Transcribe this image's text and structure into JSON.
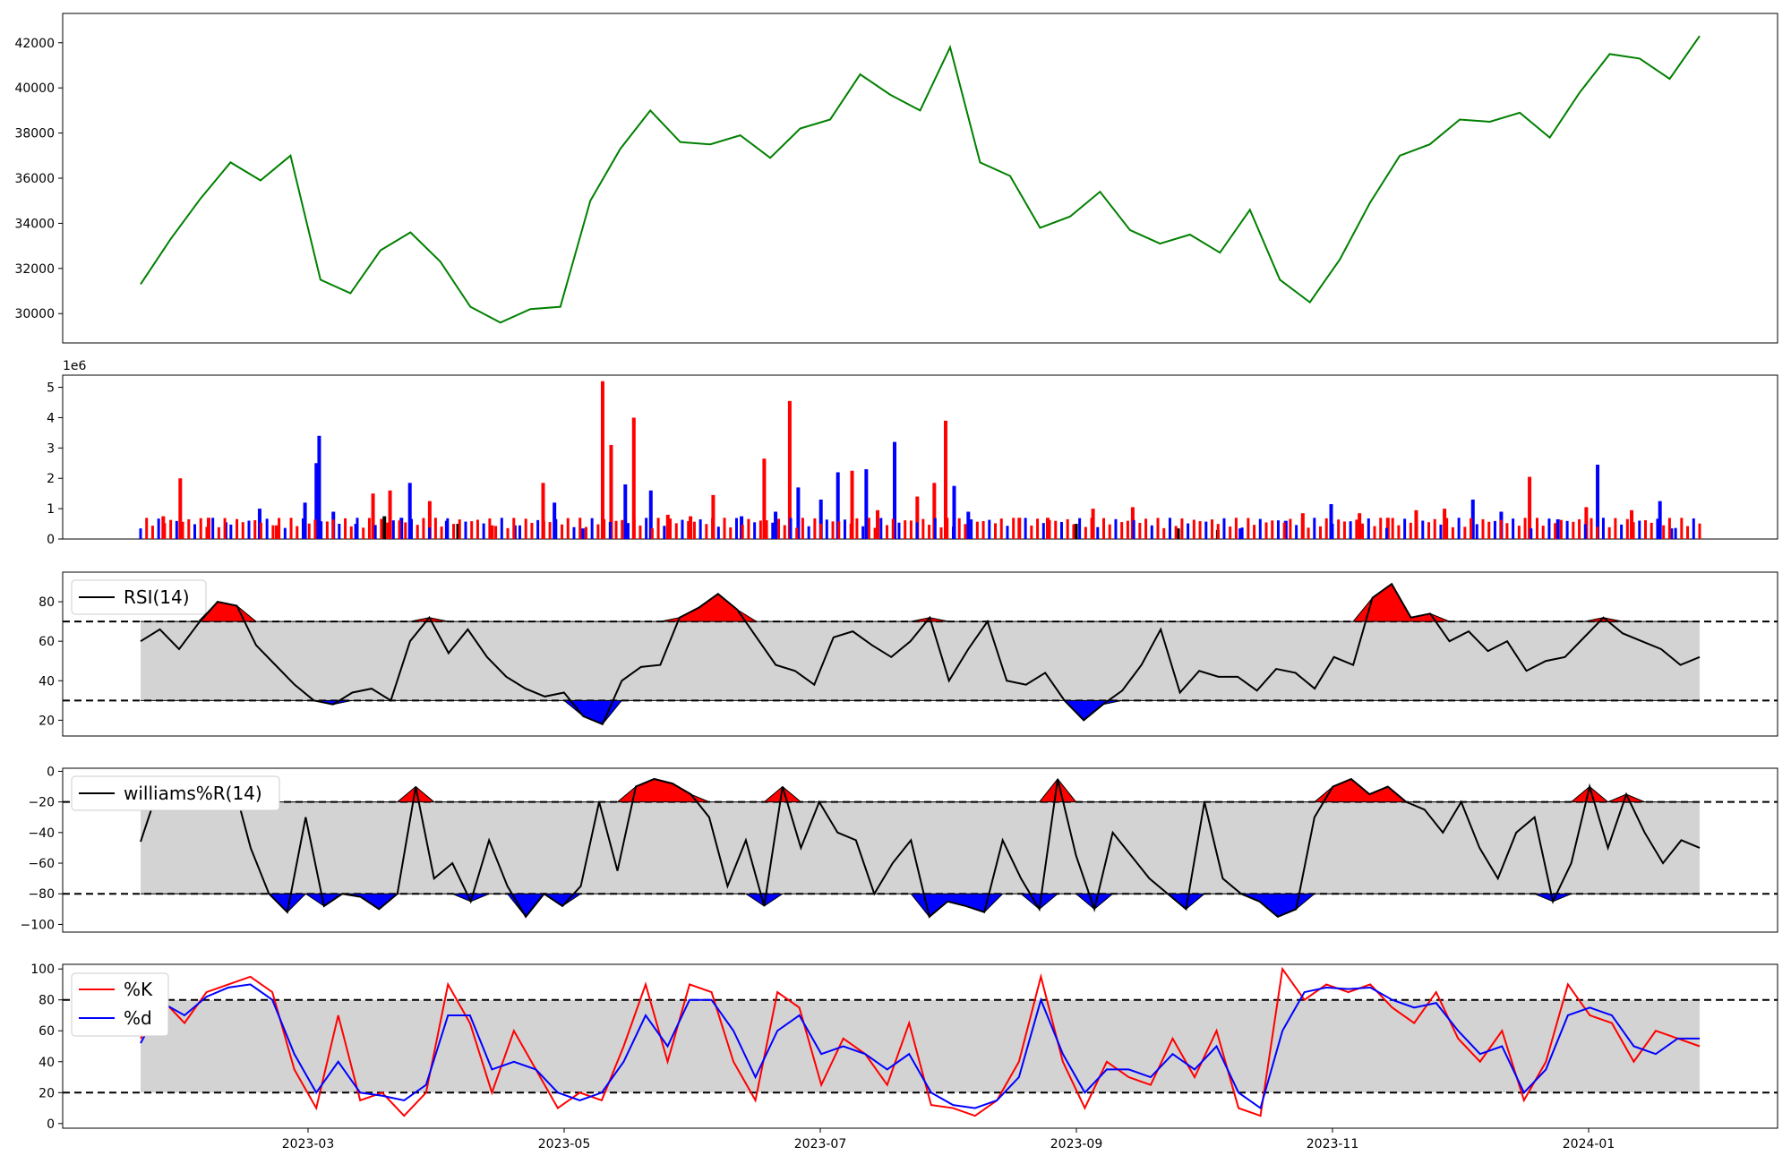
{
  "colors": {
    "price": "#008000",
    "up": "#ff0000",
    "down": "#0000ff",
    "flat": "#000000",
    "band": "#d3d3d3",
    "line": "#000000",
    "k": "#ff0000",
    "d": "#0000ff"
  },
  "chart_data": [
    {
      "type": "line",
      "name": "price",
      "ylim": [
        28700,
        43300
      ],
      "yticks": [
        "30000",
        "32000",
        "34000",
        "36000",
        "38000",
        "40000",
        "42000"
      ],
      "x_dates": [
        "2023-01-24",
        "2023-02-01",
        "2023-02-08",
        "2023-02-15",
        "2023-02-22",
        "2023-03-01",
        "2023-03-08",
        "2023-03-15",
        "2023-03-22",
        "2023-03-29",
        "2023-04-05",
        "2023-04-12",
        "2023-04-19",
        "2023-04-26",
        "2023-05-03",
        "2023-05-10",
        "2023-05-17",
        "2023-05-24",
        "2023-05-31",
        "2023-06-07",
        "2023-06-14",
        "2023-06-21",
        "2023-06-28",
        "2023-07-05",
        "2023-07-12",
        "2023-07-19",
        "2023-07-26",
        "2023-08-02",
        "2023-08-09",
        "2023-08-16",
        "2023-08-23",
        "2023-08-30",
        "2023-09-06",
        "2023-09-13",
        "2023-09-20",
        "2023-09-27",
        "2023-10-04",
        "2023-10-11",
        "2023-10-18",
        "2023-10-25",
        "2023-11-01",
        "2023-11-08",
        "2023-11-15",
        "2023-11-22",
        "2023-11-29",
        "2023-12-06",
        "2023-12-13",
        "2023-12-20",
        "2023-12-27",
        "2024-01-03",
        "2024-01-10",
        "2024-01-17",
        "2024-01-24"
      ],
      "y": [
        31300,
        33300,
        35100,
        36700,
        35900,
        37000,
        31500,
        30900,
        32800,
        33600,
        32300,
        30300,
        29600,
        30200,
        30300,
        35000,
        37300,
        39000,
        37600,
        37500,
        37900,
        36900,
        38200,
        38600,
        40600,
        39700,
        39000,
        41800,
        36700,
        36100,
        33800,
        34300,
        35400,
        33700,
        33100,
        33500,
        32700,
        34600,
        31500,
        30500,
        32400,
        34900,
        37000,
        37500,
        38600,
        38500,
        38900,
        37800,
        39800,
        41500,
        41300,
        40400,
        42300
      ]
    },
    {
      "type": "bar",
      "name": "volume",
      "ylim": [
        0,
        5.4
      ],
      "yticks": [
        "0",
        "1",
        "2",
        "3",
        "4",
        "5"
      ],
      "scale_label": "1e6",
      "points": [
        [
          0.4,
          0.75,
          "r"
        ],
        [
          0.7,
          2.0,
          "r"
        ],
        [
          1.2,
          0.7,
          "r"
        ],
        [
          1.5,
          0.55,
          "b"
        ],
        [
          2.1,
          1.0,
          "b"
        ],
        [
          2.4,
          0.45,
          "r"
        ],
        [
          2.9,
          1.2,
          "b"
        ],
        [
          3.1,
          2.5,
          "b"
        ],
        [
          3.15,
          3.4,
          "b"
        ],
        [
          3.4,
          0.9,
          "b"
        ],
        [
          3.8,
          0.5,
          "b"
        ],
        [
          4.1,
          1.5,
          "r"
        ],
        [
          4.3,
          0.75,
          "k"
        ],
        [
          4.4,
          1.6,
          "r"
        ],
        [
          4.6,
          0.7,
          "b"
        ],
        [
          4.75,
          1.85,
          "b"
        ],
        [
          5.1,
          1.25,
          "r"
        ],
        [
          5.4,
          0.6,
          "b"
        ],
        [
          5.6,
          0.5,
          "k"
        ],
        [
          6.2,
          0.45,
          "r"
        ],
        [
          6.6,
          0.45,
          "b"
        ],
        [
          7.1,
          1.85,
          "r"
        ],
        [
          7.3,
          1.2,
          "b"
        ],
        [
          7.8,
          0.35,
          "b"
        ],
        [
          8.15,
          5.2,
          "r"
        ],
        [
          8.3,
          3.1,
          "r"
        ],
        [
          8.55,
          1.8,
          "b"
        ],
        [
          8.7,
          4.0,
          "r"
        ],
        [
          9.0,
          1.6,
          "b"
        ],
        [
          9.3,
          0.8,
          "r"
        ],
        [
          9.7,
          0.75,
          "r"
        ],
        [
          10.1,
          1.45,
          "r"
        ],
        [
          10.6,
          0.75,
          "b"
        ],
        [
          11.0,
          2.65,
          "r"
        ],
        [
          11.2,
          0.9,
          "b"
        ],
        [
          11.45,
          4.55,
          "r"
        ],
        [
          11.6,
          1.7,
          "b"
        ],
        [
          12.0,
          1.3,
          "b"
        ],
        [
          12.3,
          2.2,
          "b"
        ],
        [
          12.55,
          2.25,
          "r"
        ],
        [
          12.8,
          2.3,
          "b"
        ],
        [
          13.0,
          0.95,
          "r"
        ],
        [
          13.3,
          3.2,
          "b"
        ],
        [
          13.7,
          1.4,
          "r"
        ],
        [
          14.0,
          1.85,
          "r"
        ],
        [
          14.2,
          3.9,
          "r"
        ],
        [
          14.35,
          1.75,
          "b"
        ],
        [
          14.6,
          0.9,
          "b"
        ],
        [
          15.5,
          0.7,
          "r"
        ],
        [
          16.0,
          0.7,
          "r"
        ],
        [
          16.5,
          0.5,
          "k"
        ],
        [
          16.8,
          1.0,
          "r"
        ],
        [
          17.5,
          1.05,
          "r"
        ],
        [
          18.3,
          0.35,
          "k"
        ],
        [
          19.0,
          0.3,
          "k"
        ],
        [
          19.4,
          0.35,
          "b"
        ],
        [
          20.2,
          0.6,
          "b"
        ],
        [
          20.5,
          0.85,
          "r"
        ],
        [
          21.0,
          1.15,
          "b"
        ],
        [
          21.5,
          0.85,
          "r"
        ],
        [
          22.0,
          0.7,
          "r"
        ],
        [
          22.5,
          0.95,
          "r"
        ],
        [
          23.0,
          1.0,
          "r"
        ],
        [
          23.5,
          1.3,
          "b"
        ],
        [
          24.0,
          0.9,
          "b"
        ],
        [
          24.5,
          2.05,
          "r"
        ],
        [
          25.0,
          0.65,
          "b"
        ],
        [
          25.5,
          1.05,
          "r"
        ],
        [
          25.7,
          2.45,
          "b"
        ],
        [
          26.3,
          0.95,
          "r"
        ],
        [
          26.8,
          1.25,
          "b"
        ],
        [
          27.0,
          0.35,
          "b"
        ]
      ],
      "x_extra_dates": [
        "2023-01-24",
        "2024-01-24"
      ]
    },
    {
      "type": "line",
      "name": "rsi",
      "ylim": [
        12,
        95
      ],
      "yticks": [
        "20",
        "40",
        "60",
        "80"
      ],
      "upper": 70,
      "lower": 30,
      "legend": "RSI(14)",
      "y": [
        60,
        66,
        56,
        69,
        80,
        78,
        58,
        48,
        38,
        30,
        28,
        34,
        36,
        30,
        60,
        72,
        54,
        66,
        52,
        42,
        36,
        32,
        34,
        22,
        18,
        40,
        47,
        48,
        72,
        77,
        84,
        76,
        62,
        48,
        45,
        38,
        62,
        65,
        58,
        52,
        60,
        72,
        40,
        56,
        70,
        40,
        38,
        44,
        30,
        20,
        28,
        35,
        48,
        66,
        34,
        45,
        42,
        42,
        35,
        46,
        44,
        36,
        52,
        48,
        82,
        89,
        72,
        74,
        60,
        65,
        55,
        60,
        45,
        50,
        52,
        62,
        72,
        64,
        60,
        56,
        48,
        52
      ]
    },
    {
      "type": "line",
      "name": "williams",
      "ylim": [
        -105,
        2
      ],
      "yticks": [
        "0",
        "−20",
        "−40",
        "−60",
        "−80",
        "−100"
      ],
      "upper": -20,
      "lower": -80,
      "legend": "williams%R(14)",
      "y": [
        -46,
        -10,
        -15,
        -5,
        -15,
        -5,
        -50,
        -80,
        -92,
        -30,
        -88,
        -80,
        -82,
        -90,
        -80,
        -10,
        -70,
        -60,
        -85,
        -45,
        -75,
        -95,
        -80,
        -88,
        -75,
        -20,
        -65,
        -10,
        -5,
        -8,
        -15,
        -30,
        -75,
        -45,
        -88,
        -10,
        -50,
        -20,
        -40,
        -45,
        -80,
        -60,
        -45,
        -95,
        -85,
        -88,
        -92,
        -45,
        -70,
        -90,
        -5,
        -55,
        -90,
        -40,
        -55,
        -70,
        -80,
        -90,
        -20,
        -70,
        -80,
        -85,
        -95,
        -90,
        -30,
        -10,
        -5,
        -15,
        -10,
        -20,
        -25,
        -40,
        -20,
        -50,
        -70,
        -40,
        -30,
        -85,
        -60,
        -10,
        -50,
        -15,
        -40,
        -60,
        -45,
        -50
      ]
    },
    {
      "type": "line",
      "name": "stochastic",
      "ylim": [
        -3,
        103
      ],
      "yticks": [
        "0",
        "20",
        "40",
        "60",
        "80",
        "100"
      ],
      "upper": 80,
      "lower": 20,
      "legend_k": "%K",
      "legend_d": "%d",
      "k": [
        55,
        80,
        65,
        85,
        90,
        95,
        85,
        35,
        10,
        70,
        15,
        20,
        5,
        20,
        90,
        65,
        20,
        60,
        35,
        10,
        20,
        15,
        50,
        90,
        40,
        90,
        85,
        40,
        15,
        85,
        75,
        25,
        55,
        45,
        25,
        65,
        12,
        10,
        5,
        15,
        40,
        95,
        40,
        10,
        40,
        30,
        25,
        55,
        30,
        60,
        10,
        5,
        100,
        80,
        90,
        85,
        90,
        75,
        65,
        85,
        55,
        40,
        60,
        15,
        40,
        90,
        70,
        65,
        40,
        60,
        55,
        50
      ],
      "d": [
        52,
        78,
        70,
        82,
        88,
        90,
        80,
        45,
        20,
        40,
        20,
        18,
        15,
        25,
        70,
        70,
        35,
        40,
        35,
        20,
        15,
        20,
        40,
        70,
        50,
        80,
        80,
        60,
        30,
        60,
        70,
        45,
        50,
        45,
        35,
        45,
        20,
        12,
        10,
        15,
        30,
        80,
        45,
        20,
        35,
        35,
        30,
        45,
        35,
        50,
        20,
        10,
        60,
        85,
        88,
        87,
        88,
        80,
        75,
        78,
        60,
        45,
        50,
        20,
        35,
        70,
        75,
        70,
        50,
        45,
        55,
        55
      ]
    }
  ],
  "x_axis": {
    "ticks": [
      "2023-03",
      "2023-05",
      "2023-07",
      "2023-09",
      "2023-11",
      "2024-01"
    ]
  }
}
